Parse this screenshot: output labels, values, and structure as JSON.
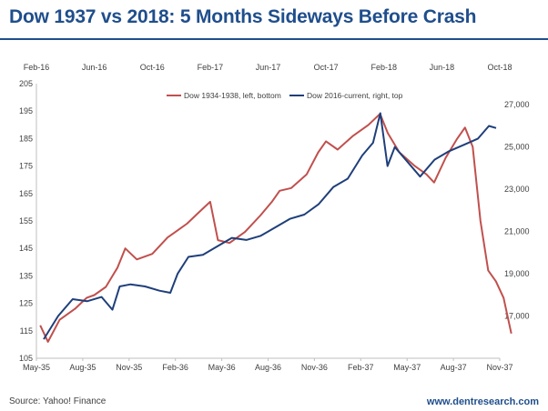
{
  "header": {
    "title": "Dow 1937 vs 2018: 5 Months Sideways Before Crash"
  },
  "footer": {
    "source": "Source: Yahoo! Finance",
    "website": "www.dentresearch.com"
  },
  "colors": {
    "title": "#1f4e8c",
    "dow_1934_1938": "#c0504d",
    "dow_2016_current": "#1f3f7a"
  },
  "chart_data": {
    "type": "line",
    "title": "",
    "legend_position": "top-center",
    "grid": false,
    "axes": {
      "left": {
        "range": [
          105,
          205
        ],
        "ticks": [
          "105",
          "115",
          "125",
          "135",
          "145",
          "155",
          "165",
          "175",
          "185",
          "195",
          "205"
        ]
      },
      "right": {
        "range": [
          15000,
          28000
        ],
        "ticks": [
          "17,000",
          "19,000",
          "21,000",
          "23,000",
          "25,000",
          "27,000"
        ]
      },
      "bottom": {
        "ticks": [
          "May-35",
          "Aug-35",
          "Nov-35",
          "Feb-36",
          "May-36",
          "Aug-36",
          "Nov-36",
          "Feb-37",
          "May-37",
          "Aug-37",
          "Nov-37"
        ]
      },
      "top": {
        "ticks": [
          "Feb-16",
          "Jun-16",
          "Oct-16",
          "Feb-17",
          "Jun-17",
          "Oct-17",
          "Feb-18",
          "Jun-18",
          "Oct-18"
        ]
      }
    },
    "series": [
      {
        "name": "Dow 1934-1938, left, bottom",
        "axes": "left-bottom",
        "points": [
          [
            "May-35",
            117
          ],
          [
            "May-35",
            111
          ],
          [
            "Jun-35",
            119
          ],
          [
            "Jul-35",
            123
          ],
          [
            "Aug-35",
            127
          ],
          [
            "Aug-35",
            128
          ],
          [
            "Sep-35",
            131
          ],
          [
            "Oct-35",
            138
          ],
          [
            "Oct-35",
            145
          ],
          [
            "Nov-35",
            141
          ],
          [
            "Dec-35",
            143
          ],
          [
            "Jan-36",
            149
          ],
          [
            "Feb-36",
            152
          ],
          [
            "Feb-36",
            154
          ],
          [
            "Mar-36",
            158
          ],
          [
            "Apr-36",
            162
          ],
          [
            "Apr-36",
            148
          ],
          [
            "May-36",
            147
          ],
          [
            "Jun-36",
            151
          ],
          [
            "Jul-36",
            157
          ],
          [
            "Aug-36",
            162
          ],
          [
            "Aug-36",
            166
          ],
          [
            "Sep-36",
            167
          ],
          [
            "Oct-36",
            172
          ],
          [
            "Nov-36",
            180
          ],
          [
            "Nov-36",
            184
          ],
          [
            "Dec-36",
            181
          ],
          [
            "Jan-37",
            186
          ],
          [
            "Feb-37",
            190
          ],
          [
            "Mar-37",
            194
          ],
          [
            "Mar-37",
            187
          ],
          [
            "Apr-37",
            180
          ],
          [
            "May-37",
            175
          ],
          [
            "Jun-37",
            172
          ],
          [
            "Jun-37",
            169
          ],
          [
            "Jul-37",
            178
          ],
          [
            "Aug-37",
            185
          ],
          [
            "Aug-37",
            189
          ],
          [
            "Sep-37",
            182
          ],
          [
            "Sep-37",
            155
          ],
          [
            "Oct-37",
            137
          ],
          [
            "Oct-37",
            133
          ],
          [
            "Nov-37",
            127
          ],
          [
            "Nov-37",
            114
          ]
        ]
      },
      {
        "name": "Dow 2016-current, right, top",
        "axes": "right-top",
        "points": [
          [
            "Feb-16",
            15900
          ],
          [
            "Mar-16",
            17000
          ],
          [
            "Apr-16",
            17800
          ],
          [
            "May-16",
            17700
          ],
          [
            "Jun-16",
            17900
          ],
          [
            "Jul-16",
            17300
          ],
          [
            "Jul-16",
            18400
          ],
          [
            "Aug-16",
            18500
          ],
          [
            "Sep-16",
            18400
          ],
          [
            "Oct-16",
            18200
          ],
          [
            "Nov-16",
            18100
          ],
          [
            "Nov-16",
            19000
          ],
          [
            "Dec-16",
            19800
          ],
          [
            "Jan-17",
            19900
          ],
          [
            "Feb-17",
            20300
          ],
          [
            "Mar-17",
            20700
          ],
          [
            "Apr-17",
            20600
          ],
          [
            "May-17",
            20800
          ],
          [
            "Jun-17",
            21200
          ],
          [
            "Jul-17",
            21600
          ],
          [
            "Aug-17",
            21800
          ],
          [
            "Sep-17",
            22300
          ],
          [
            "Oct-17",
            23100
          ],
          [
            "Nov-17",
            23500
          ],
          [
            "Dec-17",
            24600
          ],
          [
            "Jan-18",
            25200
          ],
          [
            "Jan-18",
            26600
          ],
          [
            "Feb-18",
            24100
          ],
          [
            "Feb-18",
            25000
          ],
          [
            "Mar-18",
            24400
          ],
          [
            "Apr-18",
            23600
          ],
          [
            "May-18",
            24400
          ],
          [
            "Jun-18",
            24800
          ],
          [
            "Jul-18",
            25100
          ],
          [
            "Aug-18",
            25400
          ],
          [
            "Sep-18",
            26000
          ],
          [
            "Sep-18",
            25900
          ]
        ]
      }
    ]
  }
}
